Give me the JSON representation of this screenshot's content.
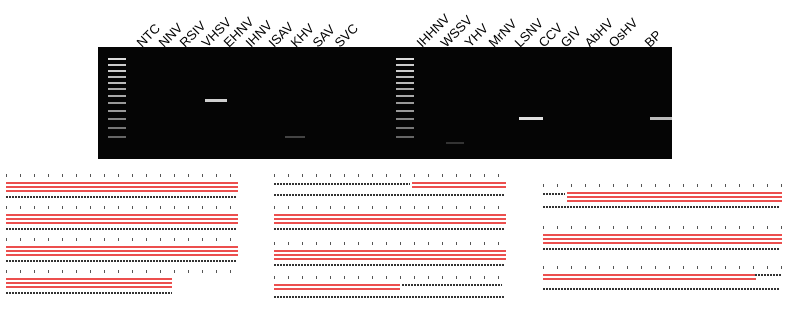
{
  "gel": {
    "lanes_left": [
      "NTC",
      "NNV",
      "RSIV",
      "VHSV",
      "EHNV",
      "IHNV",
      "ISAV",
      "KHV",
      "SAV",
      "SVC"
    ],
    "lanes_right": [
      "IHHNV",
      "WSSV",
      "YHV",
      "MrNV",
      "LSNV",
      "CCV",
      "GIV",
      "AbHV",
      "OsHV",
      "BP"
    ]
  }
}
